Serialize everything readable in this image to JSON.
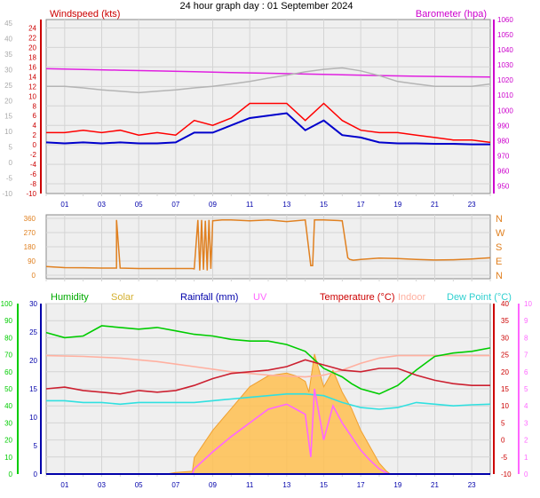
{
  "title": "24 hour graph day : 01 September 2024",
  "hours": [
    "01",
    "03",
    "05",
    "07",
    "09",
    "11",
    "13",
    "15",
    "17",
    "19",
    "21",
    "23"
  ],
  "chart_data": [
    {
      "type": "line",
      "name": "wind-barometer",
      "ylabel": "Windspeed (kts)",
      "y2label": "Barometer (hpa)",
      "ylim": [
        -10,
        25
      ],
      "yticks": [
        24,
        22,
        20,
        18,
        16,
        14,
        12,
        10,
        8,
        6,
        4,
        2,
        0,
        -2,
        -4,
        -6,
        -8,
        -10
      ],
      "ylim_outer": [
        -10,
        45
      ],
      "yticks_outer": [
        45,
        40,
        35,
        30,
        25,
        20,
        15,
        10,
        5,
        0,
        -5,
        -10
      ],
      "y2lim": [
        945,
        1060
      ],
      "y2ticks": [
        1060,
        1050,
        1040,
        1030,
        1020,
        1010,
        1000,
        990,
        980,
        970,
        960,
        950
      ],
      "colors": {
        "gust": "#ff0000",
        "avg": "#0000cc",
        "baro": "#e020e0",
        "gray": "#b4b4b4"
      },
      "series": [
        {
          "key": "baro",
          "x": [
            0,
            2,
            4,
            6,
            8,
            10,
            12,
            14,
            16,
            18,
            20,
            22,
            24
          ],
          "values": [
            1027.5,
            1027,
            1026.5,
            1026,
            1025.5,
            1025,
            1024.5,
            1024,
            1023.5,
            1023,
            1022.5,
            1022.2,
            1022
          ]
        },
        {
          "key": "gray",
          "x": [
            0,
            1,
            2,
            3,
            4,
            5,
            6,
            7,
            8,
            9,
            10,
            11,
            12,
            13,
            14,
            15,
            16,
            17,
            18,
            19,
            20,
            21,
            22,
            23,
            24
          ],
          "values": [
            12,
            12,
            11.7,
            11.3,
            11,
            10.7,
            11,
            11.3,
            11.7,
            12,
            12.5,
            13,
            13.7,
            14.3,
            15,
            15.5,
            15.8,
            15.2,
            14.2,
            13,
            12.5,
            12,
            12,
            12,
            12.5
          ]
        },
        {
          "key": "gust",
          "x": [
            0,
            1,
            2,
            3,
            4,
            5,
            6,
            7,
            8,
            9,
            10,
            11,
            12,
            13,
            14,
            15,
            16,
            17,
            18,
            19,
            20,
            21,
            22,
            23,
            24
          ],
          "values": [
            2.5,
            2.5,
            3,
            2.5,
            3,
            2,
            2.5,
            2,
            5,
            4,
            5.5,
            8.5,
            8.5,
            8.5,
            5,
            8.5,
            5,
            3,
            2.5,
            2.5,
            2,
            1.5,
            1,
            1,
            0.5
          ]
        },
        {
          "key": "avg",
          "x": [
            0,
            1,
            2,
            3,
            4,
            5,
            6,
            7,
            8,
            9,
            10,
            11,
            12,
            13,
            14,
            15,
            16,
            17,
            18,
            19,
            20,
            21,
            22,
            23,
            24
          ],
          "values": [
            0.5,
            0.3,
            0.5,
            0.3,
            0.5,
            0.3,
            0.3,
            0.5,
            2.5,
            2.5,
            4,
            5.5,
            6,
            6.5,
            3,
            5,
            2,
            1.5,
            0.5,
            0.3,
            0.3,
            0.2,
            0.2,
            0.1,
            0.1
          ]
        }
      ]
    },
    {
      "type": "line",
      "name": "wind-direction",
      "ylim": [
        0,
        360
      ],
      "yticks": [
        360,
        270,
        180,
        90,
        0
      ],
      "y2ticks": [
        "N",
        "W",
        "S",
        "E",
        "N"
      ],
      "colors": {
        "dir": "#e08020"
      },
      "series": [
        {
          "key": "dir",
          "x": [
            0,
            1,
            2,
            3,
            3.8,
            3.8,
            4,
            5,
            6,
            7,
            7.9,
            8,
            8.2,
            8.3,
            8.4,
            8.5,
            8.6,
            8.7,
            8.8,
            8.9,
            9,
            9.5,
            10,
            11,
            12,
            13,
            14,
            14.3,
            14.4,
            14.5,
            15,
            16,
            16.3,
            16.4,
            16.6,
            17,
            18,
            19,
            20,
            21,
            22,
            23,
            24
          ],
          "values": [
            55,
            48,
            47,
            45,
            45,
            350,
            45,
            42,
            42,
            42,
            42,
            40,
            350,
            30,
            350,
            35,
            345,
            30,
            350,
            40,
            345,
            350,
            350,
            345,
            350,
            340,
            350,
            60,
            60,
            350,
            350,
            345,
            110,
            100,
            95,
            100,
            108,
            105,
            100,
            96,
            98,
            103,
            110
          ]
        }
      ]
    },
    {
      "type": "line",
      "name": "weather",
      "legend": [
        "Humidity",
        "Solar",
        "Rainfall (mm)",
        "UV",
        "Temperature (°C)",
        "Indoor",
        "Dew Point (°C)"
      ],
      "ylim_left": [
        0,
        100
      ],
      "yticks_hum": [
        100,
        90,
        80,
        70,
        60,
        50,
        40,
        30,
        20,
        10,
        0
      ],
      "yticks_solar": [
        30,
        25,
        20,
        15,
        10,
        5,
        0
      ],
      "ylim_right": [
        -10,
        40
      ],
      "yticks_temp": [
        40,
        35,
        30,
        25,
        20,
        15,
        10,
        5,
        0,
        -5,
        -10
      ],
      "yticks_uv": [
        10,
        9,
        8,
        7,
        6,
        5,
        4,
        3,
        2,
        1,
        0
      ],
      "colors": {
        "humidity": "#00cc00",
        "solar": "#ffc050",
        "rain": "#0000aa",
        "uv": "#ff66ff",
        "temperature": "#cc2030",
        "indoor": "#ffb0a0",
        "dewpoint": "#30e0e0"
      },
      "series": [
        {
          "key": "solar",
          "x": [
            0,
            6.5,
            7,
            7.9,
            8,
            9,
            10,
            11,
            12,
            13,
            13.5,
            14,
            14.2,
            14.5,
            15,
            15.5,
            16,
            16.5,
            17,
            17.5,
            18,
            18.4,
            18.6,
            24
          ],
          "values": [
            0,
            0,
            0.3,
            0.5,
            3,
            8,
            12,
            16,
            18,
            18.5,
            18,
            17,
            15,
            22,
            16,
            19,
            15,
            12,
            8,
            5,
            2,
            0.5,
            0,
            0
          ]
        },
        {
          "key": "indoor",
          "x": [
            0,
            2,
            4,
            6,
            8,
            10,
            12,
            14,
            15,
            16,
            17,
            18,
            19,
            20,
            22,
            24
          ],
          "values": [
            69.5,
            69,
            68,
            66,
            63,
            60,
            58,
            57,
            58,
            61,
            65,
            68,
            69.5,
            69.5,
            69.5,
            69.5
          ]
        },
        {
          "key": "humidity",
          "x": [
            0,
            1,
            2,
            3,
            4,
            5,
            6,
            7,
            8,
            9,
            10,
            11,
            12,
            13,
            14,
            15,
            16,
            16.5,
            17,
            18,
            19,
            20,
            21,
            22,
            23,
            24
          ],
          "values": [
            83,
            80,
            81,
            87,
            86,
            85,
            86,
            84,
            82,
            81,
            79,
            78,
            78,
            76,
            72,
            62,
            57,
            53,
            50,
            47,
            52,
            61,
            69,
            71,
            72,
            74
          ]
        },
        {
          "key": "temperature",
          "x": [
            0,
            1,
            2,
            3,
            4,
            5,
            6,
            7,
            8,
            9,
            10,
            11,
            12,
            13,
            14,
            15,
            16,
            17,
            18,
            19,
            20,
            21,
            22,
            23,
            24
          ],
          "values": [
            15,
            15.5,
            14.5,
            14,
            13.5,
            14.5,
            14,
            14.5,
            16,
            18,
            19.5,
            20,
            20.5,
            21.5,
            23.5,
            22,
            20.5,
            20,
            21,
            21,
            19,
            17.5,
            16.5,
            16,
            16
          ]
        },
        {
          "key": "dewpoint",
          "x": [
            0,
            1,
            2,
            3,
            4,
            5,
            6,
            7,
            8,
            9,
            10,
            11,
            12,
            13,
            14,
            15,
            16,
            17,
            18,
            19,
            20,
            21,
            22,
            23,
            24
          ],
          "values": [
            11.5,
            11.5,
            11,
            11,
            10.5,
            11,
            11,
            11,
            11,
            11.5,
            12,
            12.5,
            13,
            13.5,
            13.5,
            13,
            11,
            9.5,
            9,
            9.5,
            11,
            10.5,
            10,
            10.3,
            10.5
          ]
        },
        {
          "key": "uv",
          "x": [
            0,
            7.9,
            8,
            9,
            10,
            11,
            12,
            13,
            13.5,
            14,
            14.3,
            14.5,
            15,
            15.5,
            16,
            16.5,
            17,
            17.5,
            18,
            18.5,
            24
          ],
          "values": [
            0,
            0,
            0.3,
            1.3,
            2.2,
            3,
            3.8,
            4.1,
            3.8,
            3.5,
            1,
            5,
            2,
            4,
            3,
            2.2,
            1.4,
            0.8,
            0.3,
            0,
            0
          ]
        },
        {
          "key": "rain",
          "x": [
            0,
            24
          ],
          "values": [
            0,
            0
          ]
        }
      ]
    }
  ],
  "labels": {
    "windspeed": "Windspeed (kts)",
    "barometer": "Barometer (hpa)",
    "dir_letters": [
      "N",
      "W",
      "S",
      "E",
      "N"
    ]
  }
}
